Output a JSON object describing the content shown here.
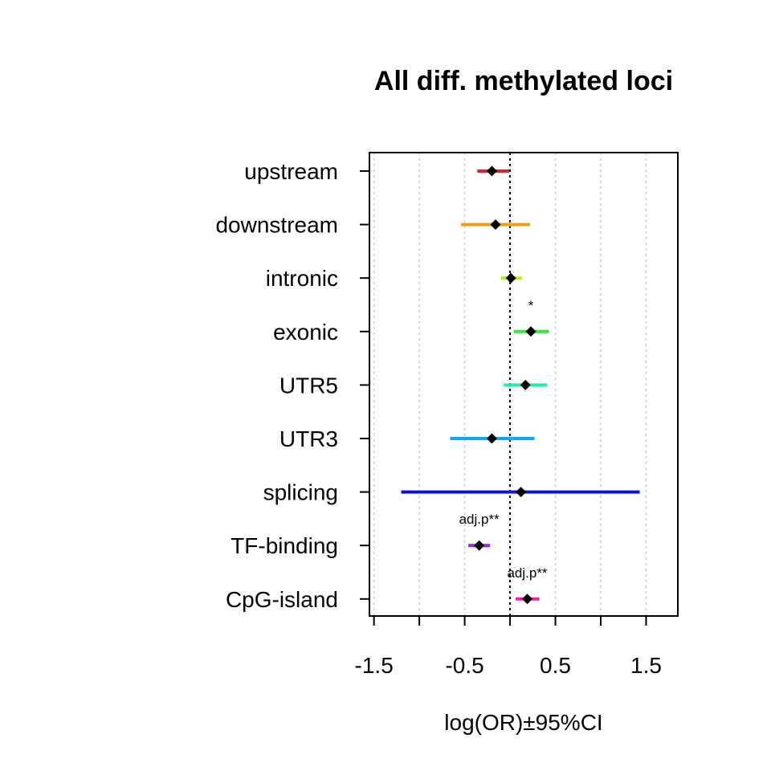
{
  "chart_data": {
    "type": "forest",
    "title": "All diff. methylated loci",
    "xlabel": "log(OR)±95%CI",
    "xlim": [
      -1.55,
      1.85
    ],
    "xticks": [
      -1.5,
      -1.0,
      -0.5,
      0.0,
      0.5,
      1.0,
      1.5
    ],
    "xtick_labels": [
      "-1.5",
      "",
      "-0.5",
      "",
      "0.5",
      "",
      "1.5"
    ],
    "grid": true,
    "reference_line": 0.0,
    "categories": [
      "upstream",
      "downstream",
      "intronic",
      "exonic",
      "UTR5",
      "UTR3",
      "splicing",
      "TF-binding",
      "CpG-island"
    ],
    "estimates": [
      -0.2,
      -0.16,
      0.01,
      0.23,
      0.17,
      -0.2,
      0.12,
      -0.34,
      0.19
    ],
    "ci_lower": [
      -0.36,
      -0.54,
      -0.1,
      0.04,
      -0.07,
      -0.66,
      -1.2,
      -0.46,
      0.06
    ],
    "ci_upper": [
      -0.01,
      0.22,
      0.13,
      0.43,
      0.41,
      0.27,
      1.43,
      -0.22,
      0.32
    ],
    "colors": [
      "#E0202A",
      "#EAA012",
      "#B0F010",
      "#30EE30",
      "#20F0A0",
      "#10A8F0",
      "#1010E0",
      "#A020E0",
      "#F020B0"
    ],
    "annotations": [
      {
        "category": "exonic",
        "text": "*",
        "x": 0.23
      },
      {
        "category": "TF-binding",
        "text": "adj.p**",
        "x": -0.34
      },
      {
        "category": "CpG-island",
        "text": "adj.p**",
        "x": 0.19
      }
    ]
  }
}
